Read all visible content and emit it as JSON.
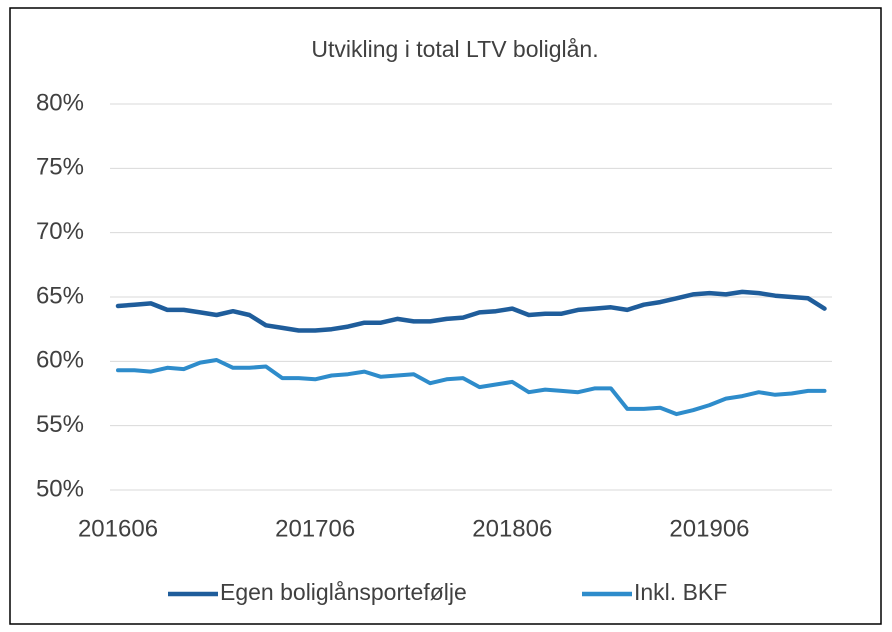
{
  "chart_data": {
    "type": "line",
    "title": "Utvikling i total LTV boliglån.",
    "categories": [
      "201606",
      null,
      null,
      null,
      null,
      null,
      null,
      null,
      null,
      null,
      null,
      null,
      "201706",
      null,
      null,
      null,
      null,
      null,
      null,
      null,
      null,
      null,
      null,
      null,
      "201806",
      null,
      null,
      null,
      null,
      null,
      null,
      null,
      null,
      null,
      null,
      null,
      "201906",
      null,
      null,
      null,
      null,
      null,
      null,
      null
    ],
    "series": [
      {
        "name": "Egen boliglånsportefølje",
        "color": "#1f5d9b",
        "values": [
          64.3,
          64.4,
          64.5,
          64.0,
          64.0,
          63.8,
          63.6,
          63.9,
          63.6,
          62.8,
          62.6,
          62.4,
          62.4,
          62.5,
          62.7,
          63.0,
          63.0,
          63.3,
          63.1,
          63.1,
          63.3,
          63.4,
          63.8,
          63.9,
          64.1,
          63.6,
          63.7,
          63.7,
          64.0,
          64.1,
          64.2,
          64.0,
          64.4,
          64.6,
          64.9,
          65.2,
          65.3,
          65.2,
          65.4,
          65.3,
          65.1,
          65.0,
          64.9,
          64.1
        ]
      },
      {
        "name": "Inkl. BKF",
        "color": "#2e8ccb",
        "values": [
          59.3,
          59.3,
          59.2,
          59.5,
          59.4,
          59.9,
          60.1,
          59.5,
          59.5,
          59.6,
          58.7,
          58.7,
          58.6,
          58.9,
          59.0,
          59.2,
          58.8,
          58.9,
          59.0,
          58.3,
          58.6,
          58.7,
          58.0,
          58.2,
          58.4,
          57.6,
          57.8,
          57.7,
          57.6,
          57.9,
          57.9,
          56.3,
          56.3,
          56.4,
          55.9,
          56.2,
          56.6,
          57.1,
          57.3,
          57.6,
          57.4,
          57.5,
          57.7,
          57.7
        ]
      }
    ],
    "ylim": [
      50,
      80
    ],
    "yticks": [
      {
        "value": 50,
        "label": "50%"
      },
      {
        "value": 55,
        "label": "55%"
      },
      {
        "value": 60,
        "label": "60%"
      },
      {
        "value": 65,
        "label": "65%"
      },
      {
        "value": 70,
        "label": "70%"
      },
      {
        "value": 75,
        "label": "75%"
      },
      {
        "value": 80,
        "label": "80%"
      }
    ],
    "grid": true,
    "legend": "bottom"
  }
}
